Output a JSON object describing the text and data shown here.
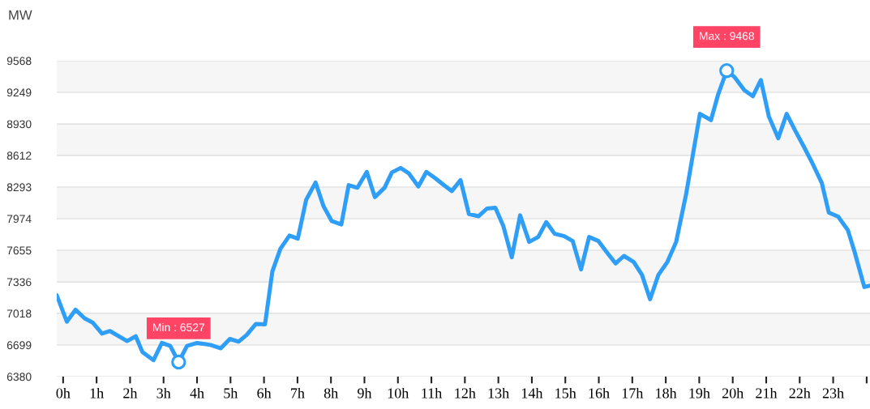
{
  "chart_data": {
    "type": "line",
    "ylabel": "MW",
    "x": [
      -0.19,
      0.11,
      0.37,
      0.64,
      0.88,
      1.16,
      1.4,
      1.91,
      2.17,
      2.37,
      2.7,
      2.95,
      3.2,
      3.45,
      3.7,
      4.0,
      4.4,
      4.71,
      4.98,
      5.24,
      5.48,
      5.76,
      6.03,
      6.25,
      6.49,
      6.76,
      7.01,
      7.26,
      7.54,
      7.78,
      8.02,
      8.31,
      8.53,
      8.79,
      9.07,
      9.31,
      9.6,
      9.82,
      10.08,
      10.32,
      10.61,
      10.85,
      11.13,
      11.37,
      11.61,
      11.87,
      12.12,
      12.41,
      12.66,
      12.91,
      13.15,
      13.4,
      13.65,
      13.92,
      14.19,
      14.43,
      14.68,
      14.97,
      15.22,
      15.47,
      15.71,
      15.99,
      16.23,
      16.5,
      16.75,
      17.04,
      17.29,
      17.53,
      17.78,
      18.05,
      18.31,
      18.61,
      19.02,
      19.35,
      19.56,
      19.82,
      20.06,
      20.35,
      20.6,
      20.84,
      21.08,
      21.36,
      21.61,
      21.87,
      22.12,
      22.37,
      22.66,
      22.87,
      23.15,
      23.44,
      23.64,
      23.93,
      24.1
    ],
    "series": [
      {
        "color": "#2e9ef7",
        "values": [
          7201,
          6934,
          7055,
          6969,
          6926,
          6814,
          6840,
          6739,
          6787,
          6627,
          6546,
          6720,
          6690,
          6527,
          6690,
          6720,
          6700,
          6666,
          6760,
          6733,
          6800,
          6912,
          6907,
          7442,
          7670,
          7804,
          7772,
          8165,
          8339,
          8098,
          7951,
          7916,
          8313,
          8286,
          8446,
          8192,
          8286,
          8441,
          8486,
          8433,
          8299,
          8446,
          8379,
          8313,
          8253,
          8363,
          8021,
          7999,
          8076,
          8084,
          7898,
          7584,
          8008,
          7740,
          7789,
          7939,
          7822,
          7797,
          7748,
          7462,
          7789,
          7748,
          7639,
          7522,
          7598,
          7538,
          7407,
          7161,
          7407,
          7538,
          7740,
          8226,
          9032,
          8969,
          9223,
          9468,
          9401,
          9270,
          9210,
          9374,
          9005,
          8786,
          9032,
          8860,
          8704,
          8540,
          8335,
          8035,
          7994,
          7857,
          7639,
          7284,
          7298
        ]
      }
    ],
    "annotations": [
      {
        "text": "Min : 6527",
        "x": 3.45,
        "y": 6527
      },
      {
        "text": "Max : 9468",
        "x": 19.82,
        "y": 9468
      }
    ],
    "xlim": [
      -0.19,
      24.1
    ],
    "xticks": [
      {
        "value": 0,
        "label": "0h"
      },
      {
        "value": 1,
        "label": "1h"
      },
      {
        "value": 2,
        "label": "2h"
      },
      {
        "value": 3,
        "label": "3h"
      },
      {
        "value": 4,
        "label": "4h"
      },
      {
        "value": 5,
        "label": "5h"
      },
      {
        "value": 6,
        "label": "6h"
      },
      {
        "value": 7,
        "label": "7h"
      },
      {
        "value": 8,
        "label": "8h"
      },
      {
        "value": 9,
        "label": "9h"
      },
      {
        "value": 10,
        "label": "10h"
      },
      {
        "value": 11,
        "label": "11h"
      },
      {
        "value": 12,
        "label": "12h"
      },
      {
        "value": 13,
        "label": "13h"
      },
      {
        "value": 14,
        "label": "14h"
      },
      {
        "value": 15,
        "label": "15h"
      },
      {
        "value": 16,
        "label": "16h"
      },
      {
        "value": 17,
        "label": "17h"
      },
      {
        "value": 18,
        "label": "18h"
      },
      {
        "value": 19,
        "label": "19h"
      },
      {
        "value": 20,
        "label": "20h"
      },
      {
        "value": 21,
        "label": "21h"
      },
      {
        "value": 22,
        "label": "22h"
      },
      {
        "value": 23,
        "label": "23h"
      },
      {
        "value": 24,
        "label": null
      }
    ],
    "ylim": [
      6380,
      9568
    ],
    "yticks": [
      6380,
      6699,
      7018,
      7336,
      7655,
      7974,
      8293,
      8612,
      8930,
      9249,
      9568
    ],
    "grid": "y",
    "legend": false,
    "marker": "none",
    "line_style": "solid"
  }
}
